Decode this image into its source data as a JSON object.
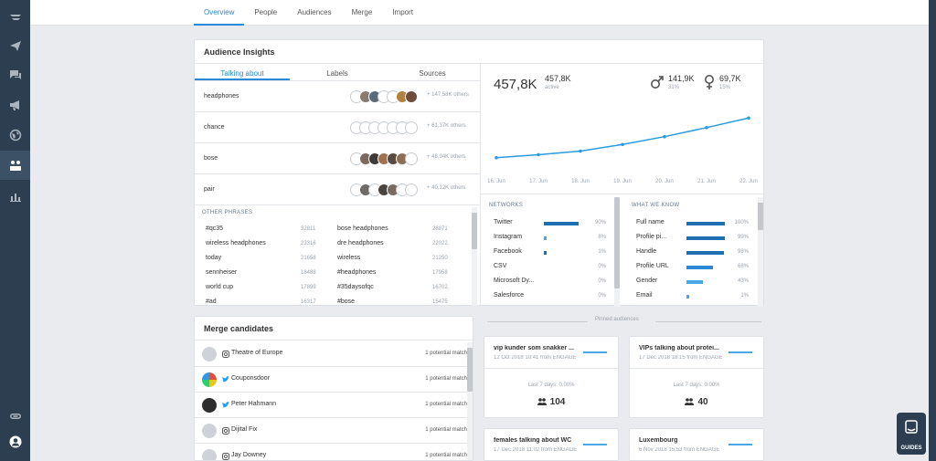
{
  "nav": {
    "tabs": [
      {
        "label": "Overview"
      },
      {
        "label": "People"
      },
      {
        "label": "Audiences"
      },
      {
        "label": "Merge"
      },
      {
        "label": "Import"
      }
    ]
  },
  "insights": {
    "title": "Audience Insights",
    "tabs": [
      "Talking about",
      "Labels",
      "Sources"
    ],
    "topics": [
      {
        "label": "headphones",
        "others": "+ 147,58K others"
      },
      {
        "label": "chance",
        "others": "+ 61,37K others"
      },
      {
        "label": "bose",
        "others": "+ 48,94K others"
      },
      {
        "label": "pair",
        "others": "+ 40,12K others"
      }
    ],
    "other_phrases_label": "OTHER PHRASES",
    "phrases_left": [
      {
        "label": "#qc35",
        "count": "32811"
      },
      {
        "label": "wireless headphones",
        "count": "23316"
      },
      {
        "label": "today",
        "count": "21658"
      },
      {
        "label": "sennheiser",
        "count": "18488"
      },
      {
        "label": "world cup",
        "count": "17899"
      },
      {
        "label": "#ad",
        "count": "16317"
      }
    ],
    "phrases_right": [
      {
        "label": "bose headphones",
        "count": "28871"
      },
      {
        "label": "dre headphones",
        "count": "22022"
      },
      {
        "label": "wireless",
        "count": "21250"
      },
      {
        "label": "#headphones",
        "count": "17958"
      },
      {
        "label": "#35daysofqc",
        "count": "16702"
      },
      {
        "label": "#bose",
        "count": "15475"
      }
    ],
    "stats": {
      "total": "457,8K",
      "active_value": "457,8K",
      "active_label": "active",
      "male_value": "141,9K",
      "male_pct": "31%",
      "female_value": "69,7K",
      "female_pct": "15%"
    },
    "networks_label": "NETWORKS",
    "networks": [
      {
        "label": "Twitter",
        "pct": "90%",
        "value": 90,
        "color": "#1f6fb2"
      },
      {
        "label": "Instagram",
        "pct": "8%",
        "value": 8,
        "color": "#4aa8e8"
      },
      {
        "label": "Facebook",
        "pct": "1%",
        "value": 1,
        "color": "#1f6fb2"
      },
      {
        "label": "CSV",
        "pct": "0%",
        "value": 0,
        "color": "#1f6fb2"
      },
      {
        "label": "Microsoft Dy...",
        "pct": "0%",
        "value": 0,
        "color": "#1f6fb2"
      },
      {
        "label": "Salesforce",
        "pct": "0%",
        "value": 0,
        "color": "#1f6fb2"
      }
    ],
    "know_label": "WHAT WE KNOW",
    "know": [
      {
        "label": "Full name",
        "pct": "100%",
        "value": 100,
        "color": "#1f6fb2"
      },
      {
        "label": "Profile pi...",
        "pct": "99%",
        "value": 99,
        "color": "#1f6fb2"
      },
      {
        "label": "Handle",
        "pct": "98%",
        "value": 98,
        "color": "#1f6fb2"
      },
      {
        "label": "Profile URL",
        "pct": "68%",
        "value": 68,
        "color": "#2b8ad8"
      },
      {
        "label": "Gender",
        "pct": "43%",
        "value": 43,
        "color": "#4aa8e8"
      },
      {
        "label": "Email",
        "pct": "1%",
        "value": 1,
        "color": "#4aa8e8"
      }
    ]
  },
  "chart_data": {
    "type": "line",
    "categories": [
      "16. Jun",
      "17. Jun",
      "18. Jun",
      "19. Jun",
      "20. Jun",
      "21. Jun",
      "22. Jun"
    ],
    "values": [
      0.2,
      0.25,
      0.31,
      0.42,
      0.55,
      0.7,
      0.86
    ],
    "ylim": [
      0,
      1
    ],
    "grid": false
  },
  "merge": {
    "title": "Merge candidates",
    "rows": [
      {
        "name": "Theatre of Europe",
        "network": "instagram-icon",
        "match": "1 potential match"
      },
      {
        "name": "Couponsdoor",
        "network": "twitter-icon",
        "match": "1 potential match"
      },
      {
        "name": "Peter Hahmann",
        "network": "twitter-icon",
        "match": "1 potential match"
      },
      {
        "name": "Dijital Fix",
        "network": "instagram-icon",
        "match": "1 potential match"
      },
      {
        "name": "Jay Downey",
        "network": "instagram-icon",
        "match": "1 potential match"
      }
    ]
  },
  "pinned": {
    "header": "Pinned audiences",
    "cards": [
      {
        "title": "vip kunder som snakker ...",
        "date": "12 Oct 2018 10:41 from ENGAGE",
        "last": "Last 7 days: 0.00%",
        "count": "104"
      },
      {
        "title": "VIPs talking about protei...",
        "date": "17 Dec 2018 18:15 from ENGAGE",
        "last": "Last 7 days: 0.00%",
        "count": "40"
      },
      {
        "title": "females talking about WC",
        "date": "17 Dec 2018 11:02 from ENGAGE",
        "last": "",
        "count": ""
      },
      {
        "title": "Luxembourg",
        "date": "6 Nov 2018 15:53 from ENGAGE",
        "last": "",
        "count": ""
      }
    ]
  },
  "guides": {
    "label": "GUIDES"
  }
}
